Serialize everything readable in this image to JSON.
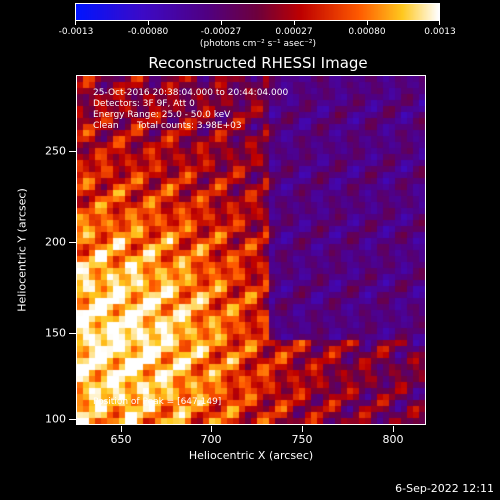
{
  "colorbar": {
    "ticks": [
      "-0.0013",
      "-0.00080",
      "-0.00027",
      "0.00027",
      "0.00080",
      "0.0013"
    ],
    "units": "(photons cm⁻² s⁻¹ asec⁻²)",
    "range": [
      -0.0013,
      0.0013
    ]
  },
  "title": "Reconstructed RHESSI Image",
  "annotations": {
    "time": "25-Oct-2016 20:38:04.000 to 20:44:04.000",
    "detectors": "Detectors: 3F 9F, Att 0",
    "energy": "Energy Range: 25.0 - 50.0 keV",
    "method": "Clean",
    "counts": "Total counts: 3.98E+03",
    "peak": "Position of Peak = [647,149]"
  },
  "axes": {
    "xlabel": "Heliocentric X (arcsec)",
    "ylabel": "Heliocentric Y (arcsec)",
    "xticks": [
      "650",
      "700",
      "750",
      "800"
    ],
    "yticks": [
      "250",
      "200",
      "150",
      "100"
    ],
    "xlim": [
      622,
      815
    ],
    "ylim": [
      98,
      291
    ]
  },
  "date_stamp": "6-Sep-2022 12:11",
  "colormap": "rainbow-like: blue-purple-red-orange-yellow-white"
}
